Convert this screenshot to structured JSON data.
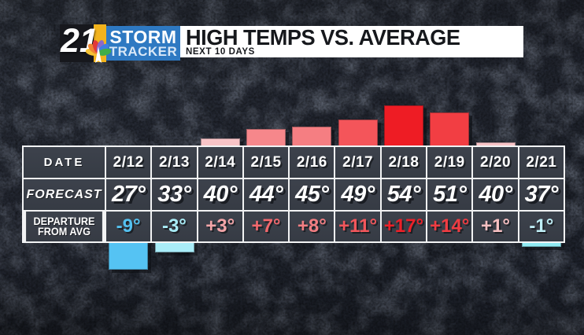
{
  "branding": {
    "station_number": "21",
    "brand_line1": "STORM",
    "brand_line2": "TRACKER",
    "colors": {
      "brand_blue": "#2e79c2",
      "brand_yellow": "#f2b31c"
    }
  },
  "header": {
    "title": "HIGH TEMPS VS. AVERAGE",
    "subtitle": "NEXT 10 DAYS"
  },
  "table": {
    "date_label": "DATE",
    "forecast_label": "FORECAST",
    "departure_label_line1": "DEPARTURE",
    "departure_label_line2": "FROM AVG"
  },
  "chart_data": {
    "type": "bar",
    "title": "HIGH TEMPS VS. AVERAGE",
    "subtitle": "NEXT 10 DAYS",
    "categories": [
      "2/12",
      "2/13",
      "2/14",
      "2/15",
      "2/16",
      "2/17",
      "2/18",
      "2/19",
      "2/20",
      "2/21"
    ],
    "series": [
      {
        "name": "FORECAST",
        "unit": "°F",
        "values": [
          27,
          33,
          40,
          44,
          45,
          49,
          54,
          51,
          40,
          37
        ],
        "labels": [
          "27°",
          "33°",
          "40°",
          "44°",
          "45°",
          "49°",
          "54°",
          "51°",
          "40°",
          "37°"
        ]
      },
      {
        "name": "DEPARTURE FROM AVG",
        "unit": "°F",
        "values": [
          -9,
          -3,
          3,
          7,
          8,
          11,
          17,
          14,
          1,
          -1
        ],
        "labels": [
          "-9°",
          "-3°",
          "+3°",
          "+7°",
          "+8°",
          "+11°",
          "+17°",
          "+14°",
          "+1°",
          "-1°"
        ],
        "text_colors": [
          "#54c1f0",
          "#a9ecf6",
          "#f3a5a8",
          "#f2686d",
          "#f27e82",
          "#f2565b",
          "#ec2028",
          "#f03c42",
          "#f5bfc1",
          "#bfeef5"
        ],
        "bar_colors": [
          "#55c3f3",
          "#a9ecf8",
          "#f8c4c7",
          "#f6878b",
          "#f57e82",
          "#f4555a",
          "#ee1c24",
          "#f23e43",
          "#f8c4c7",
          "#8feaf2"
        ]
      }
    ],
    "layout": {
      "bars_above_axis": "positive departures",
      "bars_below_axis": "negative departures",
      "grid": false,
      "legend": "none"
    }
  }
}
